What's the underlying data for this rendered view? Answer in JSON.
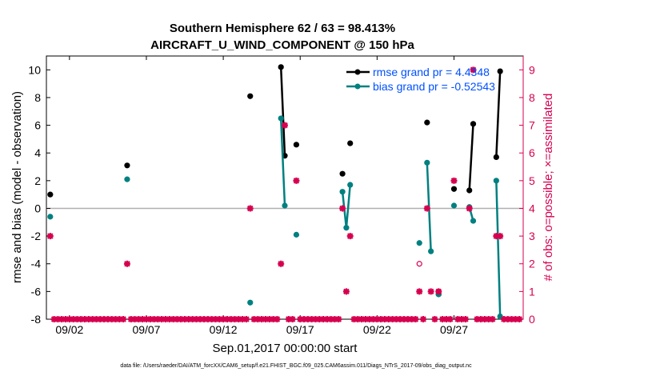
{
  "chart_data": {
    "type": "line",
    "title": "Southern Hemisphere 62 / 63 = 98.413%",
    "subtitle": "AIRCRAFT_U_WIND_COMPONENT @ 150 hPa",
    "ylabel": "rmse and bias (model - observation)",
    "ylabel_right": "# of obs: o=possible; ×=assimilated",
    "xlabel": "Sep.01,2017 00:00:00 start",
    "footer": "data file: /Users/raeder/DAI/ATM_forcXX/CAM6_setup/f.e21.FHIST_BGC.f09_025.CAM6assim.011/Diags_NTrS_2017-09/obs_diag_output.nc",
    "ylim": [
      -8,
      11
    ],
    "ylim_right": [
      0,
      9.5
    ],
    "xlim": [
      0.5,
      31.5
    ],
    "x_ticks": [
      {
        "x": 2,
        "label": "09/02"
      },
      {
        "x": 7,
        "label": "09/07"
      },
      {
        "x": 12,
        "label": "09/12"
      },
      {
        "x": 17,
        "label": "09/17"
      },
      {
        "x": 22,
        "label": "09/22"
      },
      {
        "x": 27,
        "label": "09/27"
      }
    ],
    "y_ticks": [
      "10",
      "8",
      "6",
      "4",
      "2",
      "0",
      "-2",
      "-4",
      "-6",
      "-8"
    ],
    "y_right_ticks": [
      "9",
      "8",
      "7",
      "6",
      "5",
      "4",
      "3",
      "2",
      "1",
      "0"
    ],
    "colors": {
      "rmse": "#000000",
      "bias": "#008080",
      "obs": "#d6004f",
      "zero_line": "#b0b0b0"
    },
    "series": [
      {
        "name": "rmse grand pr = 4.4348",
        "segments": [
          [
            [
              0.75,
              1.0
            ]
          ],
          [
            [
              5.75,
              3.1
            ]
          ],
          [
            [
              13.75,
              8.1
            ]
          ],
          [
            [
              15.75,
              10.2
            ],
            [
              16.0,
              3.8
            ]
          ],
          [
            [
              16.75,
              4.6
            ]
          ],
          [
            [
              19.75,
              2.5
            ]
          ],
          [
            [
              20.25,
              4.7
            ]
          ],
          [
            [
              25.25,
              6.2
            ]
          ],
          [
            [
              26.0,
              -6.2
            ]
          ],
          [
            [
              27.0,
              1.4
            ]
          ],
          [
            [
              28.0,
              1.3
            ],
            [
              28.25,
              6.1
            ]
          ],
          [
            [
              29.75,
              3.7
            ],
            [
              30.0,
              9.9
            ]
          ]
        ]
      },
      {
        "name": "bias grand pr = -0.52543",
        "segments": [
          [
            [
              0.75,
              -0.6
            ]
          ],
          [
            [
              5.75,
              2.1
            ]
          ],
          [
            [
              13.75,
              -6.8
            ]
          ],
          [
            [
              15.75,
              6.5
            ],
            [
              16.0,
              0.2
            ]
          ],
          [
            [
              16.75,
              -1.9
            ]
          ],
          [
            [
              19.75,
              1.2
            ],
            [
              20.0,
              -1.4
            ],
            [
              20.25,
              1.7
            ]
          ],
          [
            [
              24.75,
              -2.5
            ]
          ],
          [
            [
              25.25,
              3.3
            ],
            [
              25.5,
              -3.1
            ]
          ],
          [
            [
              26.0,
              -6.2
            ]
          ],
          [
            [
              27.0,
              0.2
            ]
          ],
          [
            [
              28.0,
              0.1
            ],
            [
              28.25,
              -0.9
            ]
          ],
          [
            [
              29.75,
              2.0
            ],
            [
              30.0,
              -7.8
            ]
          ]
        ]
      }
    ],
    "obs_assimilated": [
      {
        "x": 0.75,
        "n": 3
      },
      {
        "x": 5.75,
        "n": 2
      },
      {
        "x": 13.75,
        "n": 4
      },
      {
        "x": 15.75,
        "n": 2
      },
      {
        "x": 16.0,
        "n": 7
      },
      {
        "x": 16.75,
        "n": 5
      },
      {
        "x": 19.75,
        "n": 4
      },
      {
        "x": 20.0,
        "n": 1
      },
      {
        "x": 20.25,
        "n": 3
      },
      {
        "x": 24.75,
        "n": 1
      },
      {
        "x": 25.25,
        "n": 4
      },
      {
        "x": 25.5,
        "n": 1
      },
      {
        "x": 26.0,
        "n": 1
      },
      {
        "x": 27.0,
        "n": 5
      },
      {
        "x": 28.0,
        "n": 4
      },
      {
        "x": 28.25,
        "n": 9
      },
      {
        "x": 29.75,
        "n": 3
      },
      {
        "x": 30.0,
        "n": 3
      }
    ],
    "obs_possible": [
      {
        "x": 24.75,
        "n": 2
      },
      {
        "x": 26.0,
        "n": 1
      }
    ]
  }
}
